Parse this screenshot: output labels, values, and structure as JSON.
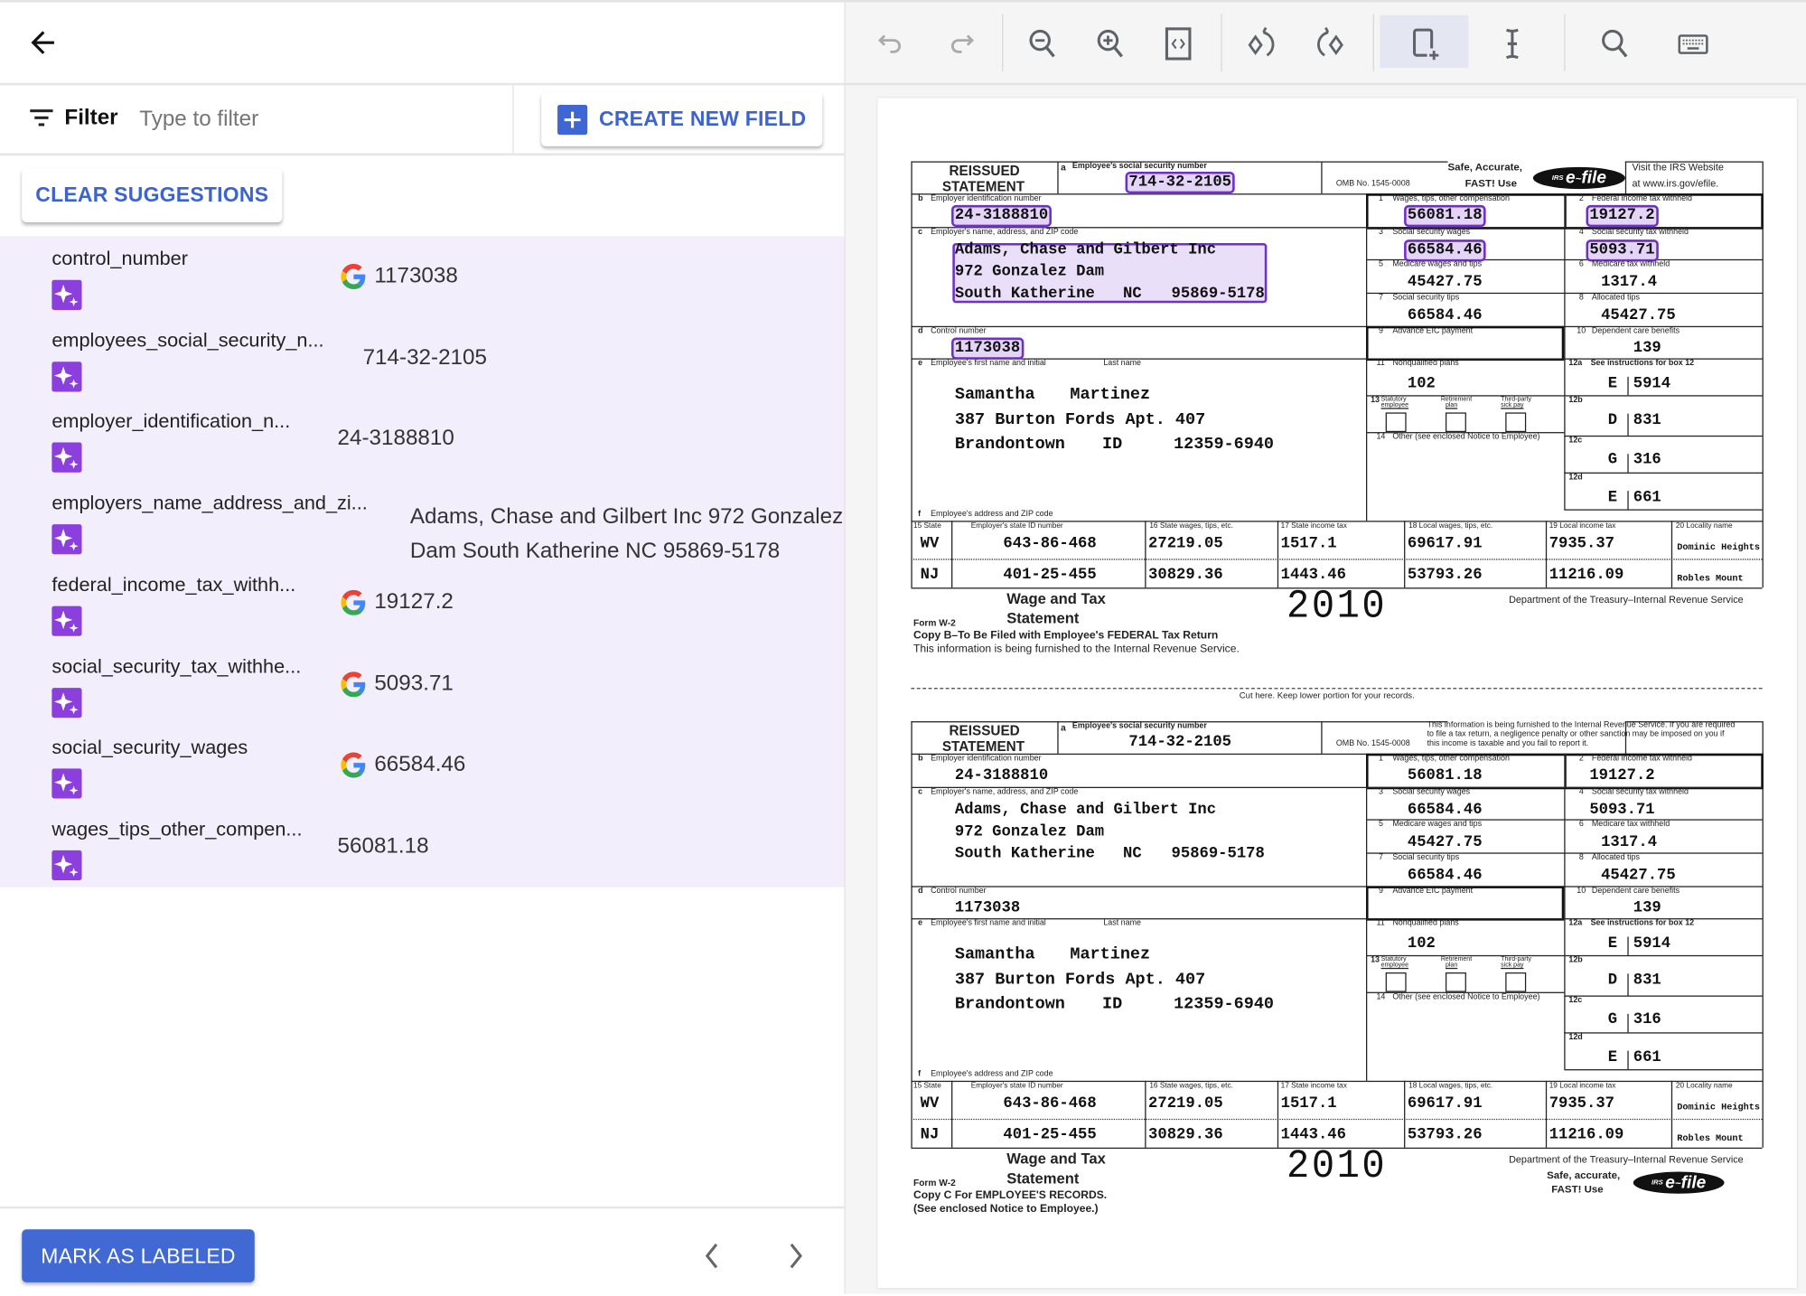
{
  "header": {
    "back_icon": "arrow-left-icon"
  },
  "filter": {
    "label": "Filter",
    "placeholder": "Type to filter",
    "value": "",
    "icon": "filter-list-icon"
  },
  "buttons": {
    "create_new_field": "CREATE NEW FIELD",
    "clear_suggestions": "CLEAR SUGGESTIONS",
    "mark_as_labeled": "MARK AS LABELED"
  },
  "colors": {
    "accent": "#3f67d3",
    "suggestion_bg": "#f3eefc",
    "sparkle": "#8b3fdc",
    "highlight_border": "#6f2fc9"
  },
  "fields": [
    {
      "name": "control_number",
      "value": "1173038",
      "google": true
    },
    {
      "name": "employees_social_security_n...",
      "value": "714-32-2105",
      "google": false
    },
    {
      "name": "employer_identification_n...",
      "value": "24-3188810",
      "google": false
    },
    {
      "name": "employers_name_address_and_zi...",
      "value": "Adams, Chase and Gilbert Inc 972 Gonzalez",
      "value2": "Dam South Katherine NC 95869-5178",
      "google": false
    },
    {
      "name": "federal_income_tax_withh...",
      "value": "19127.2",
      "google": true
    },
    {
      "name": "social_security_tax_withhe...",
      "value": "5093.71",
      "google": true
    },
    {
      "name": "social_security_wages",
      "value": "66584.46",
      "google": true
    },
    {
      "name": "wages_tips_other_compen...",
      "value": "56081.18",
      "google": false
    }
  ],
  "toolbar": [
    "undo-icon",
    "redo-icon",
    "zoom-out-icon",
    "zoom-in-icon",
    "fit-page-icon",
    "rotate-left-icon",
    "rotate-right-icon",
    "draw-box-icon",
    "text-select-icon",
    "search-icon",
    "keyboard-icon"
  ],
  "toolbar_selected": "draw-box-icon",
  "labels": {
    "reissued": "REISSUED",
    "statement": "STATEMENT",
    "a": "a",
    "ssn": "Employee's social security number",
    "omb": "OMB No. 1545-0008",
    "safe1": "Safe, Accurate,",
    "safe2": "FAST! Use",
    "visit1": "Visit the IRS Website",
    "visit2": "at www.irs.gov/efile.",
    "b": "b",
    "ein": "Employer identification number",
    "c": "c",
    "emp_addr": "Employer's name, address, and ZIP code",
    "d": "d",
    "control": "Control number",
    "e": "e",
    "first": "Employee's first name and initial",
    "last": "Last name",
    "f": "f",
    "ee_addr": "Employee's address and ZIP code",
    "n1": "1",
    "b1": "Wages, tips, other compensation",
    "n2": "2",
    "b2": "Federal income tax withheld",
    "n3": "3",
    "b3": "Social security wages",
    "n4": "4",
    "b4": "Social security tax withheld",
    "n5": "5",
    "b5": "Medicare wages and tips",
    "n6": "6",
    "b6": "Medicare tax withheld",
    "n7": "7",
    "b7": "Social security tips",
    "n8": "8",
    "b8": "Allocated tips",
    "n9": "9",
    "b9": "Advance EIC payment",
    "n10": "10",
    "b10": "Dependent care benefits",
    "n11": "11",
    "b11": "Nonqualified plans",
    "n12a": "12a",
    "b12a": "See instructions for box 12",
    "n12b": "12b",
    "n12c": "12c",
    "n12d": "12d",
    "n13": "13",
    "b13a1": "Statutory",
    "b13a2": "employee",
    "b13b1": "Retirement",
    "b13b2": "plan",
    "b13c1": "Third-party",
    "b13c2": "sick pay",
    "n14": "14",
    "b14": "Other (see enclosed Notice to Employee)",
    "s15": "15  State",
    "s15b": "Employer's state ID number",
    "s16": "16  State wages, tips, etc.",
    "s17": "17  State income tax",
    "s18": "18  Local wages, tips, etc.",
    "s19": "19  Local income tax",
    "s20": "20  Locality name",
    "wage1": "Wage and Tax",
    "wage2": "Statement",
    "formw2": "Form  W-2",
    "year": "2010",
    "dept": "Department of the Treasury–Internal Revenue Service",
    "cut": "Cut here.  Keep lower portion for your records.",
    "efile_logo": "IRS e-file",
    "copyb": "Copy B–To Be Filed with Employee's FEDERAL Tax Return",
    "copyb2": "This information is being furnished to the Internal Revenue Service.",
    "copyc": "Copy C For EMPLOYEE'S RECORDS.",
    "copyc2": "(See enclosed Notice to Employee.)",
    "safe_c1": "Safe, accurate,",
    "safe_c2": "FAST!  Use",
    "notice1": "This information is being furnished to the Internal Revenue Service.  If you are required",
    "notice2": "to file a tax return, a negligence penalty or other sanction may be imposed on you if",
    "notice3": "this income is taxable and you fail to report it."
  },
  "w2": {
    "ssn": "714-32-2105",
    "ein": "24-3188810",
    "emp_name": "Adams, Chase and Gilbert Inc",
    "emp_street": "972 Gonzalez Dam",
    "emp_city": "South Katherine",
    "emp_state": "NC",
    "emp_zip": "95869-5178",
    "control": "1173038",
    "first": "Samantha",
    "last": "Martinez",
    "ee_street": "387 Burton Fords Apt. 407",
    "ee_city": "Brandontown",
    "ee_state": "ID",
    "ee_zip": "12359-6940",
    "box1": "56081.18",
    "box2": "19127.2",
    "box3": "66584.46",
    "box4": "5093.71",
    "box5": "45427.75",
    "box6": "1317.4",
    "box7": "66584.46",
    "box8": "45427.75",
    "box10": "139",
    "box11": "102",
    "c12a": "E",
    "v12a": "5914",
    "c12b": "D",
    "v12b": "831",
    "c12c": "G",
    "v12c": "316",
    "c12d": "E",
    "v12d": "661",
    "states": [
      {
        "state": "WV",
        "id": "643-86-468",
        "wages": "27219.05",
        "tax": "1517.1",
        "local_wages": "69617.91",
        "local_tax": "7935.37",
        "locality": "Dominic Heights"
      },
      {
        "state": "NJ",
        "id": "401-25-455",
        "wages": "30829.36",
        "tax": "1443.46",
        "local_wages": "53793.26",
        "local_tax": "11216.09",
        "locality": "Robles Mount"
      }
    ]
  },
  "copies": [
    {
      "copy": "B",
      "highlighted_fields": [
        "ssn",
        "ein",
        "emp_address",
        "control",
        "box1",
        "box2",
        "box3",
        "box4"
      ]
    },
    {
      "copy": "C",
      "highlighted_fields": []
    }
  ]
}
